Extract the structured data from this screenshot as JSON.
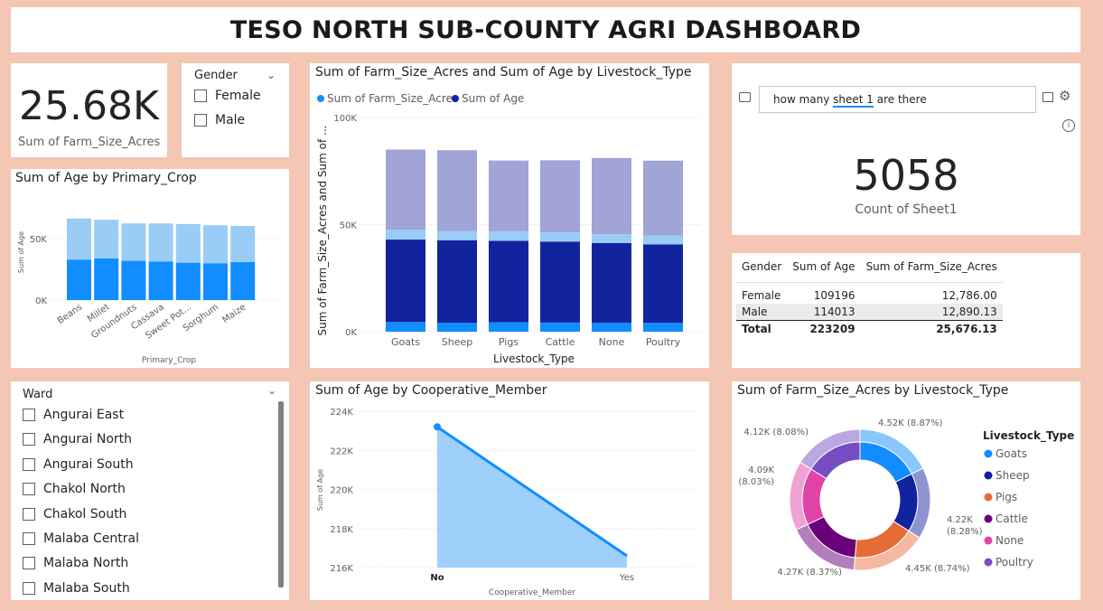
{
  "title": "TESO NORTH SUB-COUNTY AGRI DASHBOARD",
  "kpi": {
    "value": "25.68K",
    "label": "Sum of Farm_Size_Acres"
  },
  "gender_slicer": {
    "title": "Gender",
    "items": [
      "Female",
      "Male"
    ]
  },
  "qa": {
    "question_prefix": "how many ",
    "question_keyword": "sheet 1",
    "question_suffix": " are there",
    "value": "5058",
    "label": "Count of Sheet1"
  },
  "table": {
    "headers": [
      "Gender",
      "Sum of Age",
      "Sum of Farm_Size_Acres"
    ],
    "rows": [
      [
        "Female",
        "109196",
        "12,786.00"
      ],
      [
        "Male",
        "114013",
        "12,890.13"
      ]
    ],
    "total": [
      "Total",
      "223209",
      "25,676.13"
    ]
  },
  "ward_slicer": {
    "title": "Ward",
    "items": [
      "Angurai East",
      "Angurai North",
      "Angurai South",
      "Chakol North",
      "Chakol South",
      "Malaba Central",
      "Malaba North",
      "Malaba South"
    ]
  },
  "colors": {
    "light_blue": "#99ccf7",
    "blue": "#118dff",
    "navy": "#12239e",
    "lavender": "#a0a4d6",
    "orange": "#e66c37",
    "purple": "#6b007b",
    "pink": "#e044a7",
    "violet": "#744ec2"
  },
  "chart_data": [
    {
      "id": "crop",
      "type": "bar",
      "stacked": true,
      "title": "Sum of Age by Primary_Crop",
      "xlabel": "Primary_Crop",
      "ylabel": "Sum of Age",
      "categories": [
        "Beans",
        "Millet",
        "Groundnuts",
        "Cassava",
        "Sweet Pot...",
        "Sorghum",
        "Maize"
      ],
      "yticks": [
        "0K",
        "50K"
      ],
      "ylim": [
        0,
        70000
      ],
      "series": [
        {
          "values": [
            33000,
            34000,
            32000,
            31500,
            30500,
            30000,
            31000
          ]
        },
        {
          "values": [
            33500,
            31500,
            30500,
            31000,
            31500,
            31000,
            29500
          ]
        }
      ]
    },
    {
      "id": "livestock",
      "type": "bar",
      "stacked": true,
      "title": "Sum of Farm_Size_Acres and Sum of Age by Livestock_Type",
      "xlabel": "Livestock_Type",
      "ylabel": "Sum of Farm_Size_Acres and Sum of ...",
      "legend": [
        "Sum of Farm_Size_Acres",
        "Sum of Age"
      ],
      "categories": [
        "Goats",
        "Sheep",
        "Pigs",
        "Cattle",
        "None",
        "Poultry"
      ],
      "yticks": [
        "0K",
        "50K",
        "100K"
      ],
      "ylim": [
        0,
        100000
      ],
      "series": [
        {
          "name": "Sum of Farm_Size_Acres",
          "values": [
            4520,
            4220,
            4450,
            4270,
            4090,
            4120
          ]
        },
        {
          "name": "Sum of Age",
          "values": [
            38500,
            38500,
            38000,
            37800,
            37300,
            36600
          ]
        },
        {
          "values": [
            4520,
            4220,
            4450,
            4270,
            4090,
            4120
          ]
        },
        {
          "values": [
            37500,
            37800,
            33000,
            33700,
            35600,
            35000
          ]
        }
      ]
    },
    {
      "id": "coop",
      "type": "area",
      "title": "Sum of Age by Cooperative_Member",
      "xlabel": "Cooperative_Member",
      "ylabel": "Sum of Age",
      "categories": [
        "No",
        "Yes"
      ],
      "values": [
        223200,
        216600
      ],
      "yticks": [
        "216K",
        "218K",
        "220K",
        "222K",
        "224K"
      ],
      "ylim": [
        216000,
        224000
      ]
    },
    {
      "id": "donut",
      "type": "pie",
      "title": "Sum of Farm_Size_Acres by Livestock_Type",
      "legend_title": "Livestock_Type",
      "categories": [
        "Goats",
        "Sheep",
        "Pigs",
        "Cattle",
        "None",
        "Poultry"
      ],
      "values": [
        4520,
        4220,
        4450,
        4270,
        4090,
        4120
      ],
      "labels": [
        "4.52K (8.87%)",
        "4.22K (8.28%)",
        "4.45K (8.74%)",
        "4.27K (8.37%)",
        "4.09K (8.03%)",
        "4.12K (8.08%)"
      ]
    }
  ]
}
